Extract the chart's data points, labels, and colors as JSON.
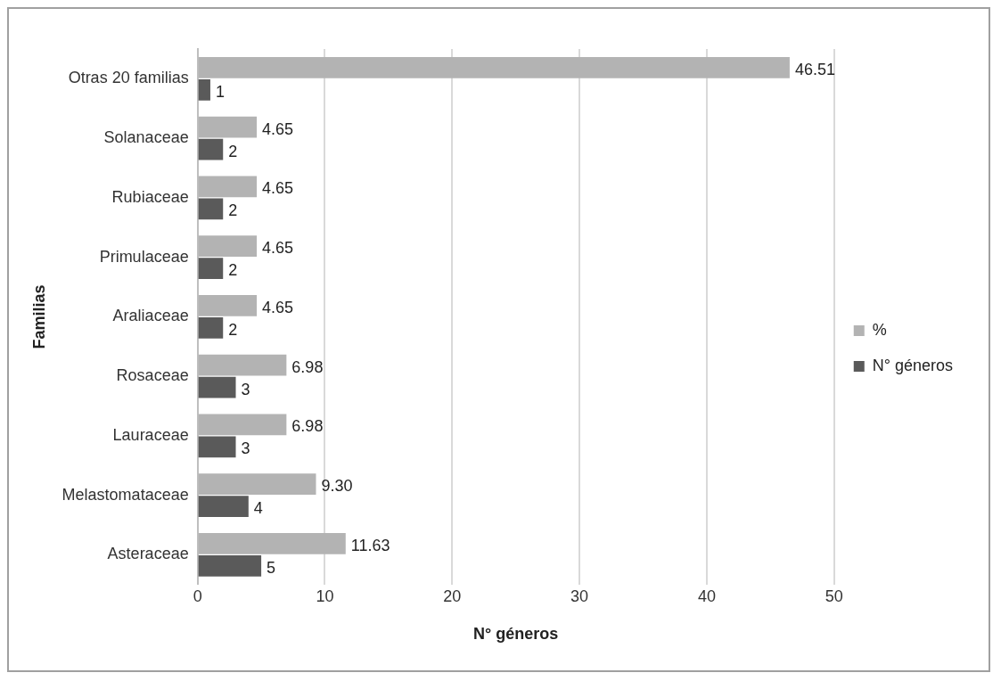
{
  "chart_data": {
    "type": "bar",
    "orientation": "horizontal",
    "xlabel": "N° géneros",
    "ylabel": "Familias",
    "categories": [
      "Otras 20 familias",
      "Solanaceae",
      "Rubiaceae",
      "Primulaceae",
      "Araliaceae",
      "Rosaceae",
      "Lauraceae",
      "Melastomataceae",
      "Asteraceae"
    ],
    "series": [
      {
        "name": "%",
        "color": "#b3b3b3",
        "values": [
          46.51,
          4.65,
          4.65,
          4.65,
          4.65,
          6.98,
          6.98,
          9.3,
          11.63
        ],
        "value_labels": [
          "46.51",
          "4.65",
          "4.65",
          "4.65",
          "4.65",
          "6.98",
          "6.98",
          "9.30",
          "11.63"
        ]
      },
      {
        "name": "N° géneros",
        "color": "#5a5a5a",
        "values": [
          1,
          2,
          2,
          2,
          2,
          3,
          3,
          4,
          5
        ],
        "value_labels": [
          "1",
          "2",
          "2",
          "2",
          "2",
          "3",
          "3",
          "4",
          "5"
        ]
      }
    ],
    "xlim": [
      0,
      50
    ],
    "xticks": [
      0,
      10,
      20,
      30,
      40,
      50
    ],
    "grid": "x",
    "legend": "right"
  }
}
